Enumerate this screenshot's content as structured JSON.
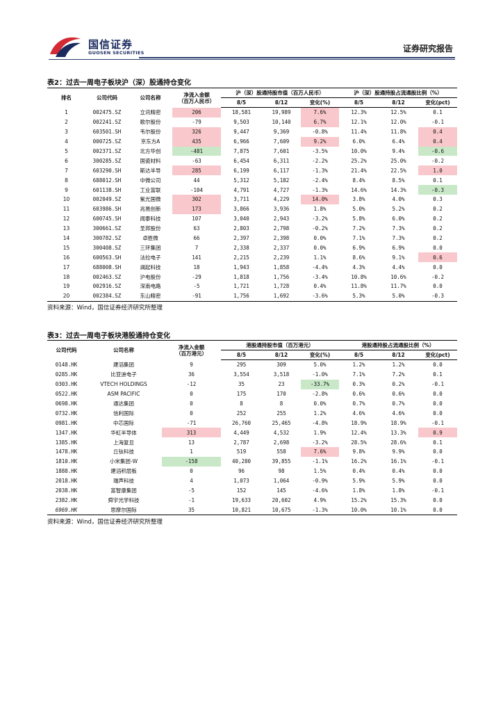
{
  "header": {
    "brand_cn": "国信证券",
    "brand_en": "GUOSEN SECURITIES",
    "report_type": "证券研究报告"
  },
  "colors": {
    "brand": "#1a2a5e",
    "logo_red": "#d42a35",
    "positive_highlight": "#f8c8cc",
    "negative_highlight": "#c8e8c8"
  },
  "table2": {
    "caption": "表2：过去一周电子板块沪（深）股通持仓变化",
    "headers": {
      "rank": "排名",
      "code": "公司代码",
      "name": "公司名称",
      "netflow_l1": "净流入金额",
      "netflow_l2": "（百万人民币）",
      "mv_group": "沪（深）股通持股市值（百万人民币）",
      "ratio_group": "沪（深）股通持股占流通股比例（%）",
      "d1": "8/5",
      "d2": "8/12",
      "chg": "变化(%)",
      "r1": "8/5",
      "r2": "8/12",
      "rchg": "变化(pct)"
    },
    "rows": [
      {
        "rank": "1",
        "code": "002475.SZ",
        "name": "立讯精密",
        "net": "206",
        "mv1": "18,581",
        "mv2": "19,989",
        "chg": "7.6%",
        "r1": "12.3%",
        "r2": "12.5%",
        "rchg": "0.1",
        "net_hl": "red",
        "chg_hl": "red",
        "rchg_hl": ""
      },
      {
        "rank": "2",
        "code": "002241.SZ",
        "name": "歌尔股份",
        "net": "-79",
        "mv1": "9,503",
        "mv2": "10,140",
        "chg": "6.7%",
        "r1": "12.1%",
        "r2": "12.0%",
        "rchg": "-0.1",
        "net_hl": "",
        "chg_hl": "red",
        "rchg_hl": ""
      },
      {
        "rank": "3",
        "code": "603501.SH",
        "name": "韦尔股份",
        "net": "326",
        "mv1": "9,447",
        "mv2": "9,369",
        "chg": "-0.8%",
        "r1": "11.4%",
        "r2": "11.8%",
        "rchg": "0.4",
        "net_hl": "red",
        "chg_hl": "",
        "rchg_hl": "red"
      },
      {
        "rank": "4",
        "code": "000725.SZ",
        "name": "京东方A",
        "net": "435",
        "mv1": "6,966",
        "mv2": "7,609",
        "chg": "9.2%",
        "r1": "6.0%",
        "r2": "6.4%",
        "rchg": "0.4",
        "net_hl": "red",
        "chg_hl": "red",
        "rchg_hl": "red"
      },
      {
        "rank": "5",
        "code": "002371.SZ",
        "name": "北方华创",
        "net": "-481",
        "mv1": "7,875",
        "mv2": "7,601",
        "chg": "-3.5%",
        "r1": "10.0%",
        "r2": "9.4%",
        "rchg": "-0.6",
        "net_hl": "green",
        "chg_hl": "",
        "rchg_hl": "green"
      },
      {
        "rank": "6",
        "code": "300285.SZ",
        "name": "国瓷材料",
        "net": "-63",
        "mv1": "6,454",
        "mv2": "6,311",
        "chg": "-2.2%",
        "r1": "25.2%",
        "r2": "25.0%",
        "rchg": "-0.2",
        "net_hl": "",
        "chg_hl": "",
        "rchg_hl": ""
      },
      {
        "rank": "7",
        "code": "603290.SH",
        "name": "斯达半导",
        "net": "285",
        "mv1": "6,199",
        "mv2": "6,117",
        "chg": "-1.3%",
        "r1": "21.4%",
        "r2": "22.5%",
        "rchg": "1.0",
        "net_hl": "red",
        "chg_hl": "",
        "rchg_hl": "red"
      },
      {
        "rank": "8",
        "code": "688012.SH",
        "name": "中微公司",
        "net": "44",
        "mv1": "5,312",
        "mv2": "5,182",
        "chg": "-2.4%",
        "r1": "8.4%",
        "r2": "8.5%",
        "rchg": "0.1",
        "net_hl": "",
        "chg_hl": "",
        "rchg_hl": ""
      },
      {
        "rank": "9",
        "code": "601138.SH",
        "name": "工业富联",
        "net": "-104",
        "mv1": "4,791",
        "mv2": "4,727",
        "chg": "-1.3%",
        "r1": "14.6%",
        "r2": "14.3%",
        "rchg": "-0.3",
        "net_hl": "",
        "chg_hl": "",
        "rchg_hl": "green"
      },
      {
        "rank": "10",
        "code": "002049.SZ",
        "name": "紫光国微",
        "net": "302",
        "mv1": "3,711",
        "mv2": "4,229",
        "chg": "14.0%",
        "r1": "3.8%",
        "r2": "4.0%",
        "rchg": "0.3",
        "net_hl": "red",
        "chg_hl": "red",
        "rchg_hl": ""
      },
      {
        "rank": "11",
        "code": "603986.SH",
        "name": "兆易创新",
        "net": "173",
        "mv1": "3,866",
        "mv2": "3,936",
        "chg": "1.8%",
        "r1": "5.0%",
        "r2": "5.2%",
        "rchg": "0.2",
        "net_hl": "red",
        "chg_hl": "",
        "rchg_hl": ""
      },
      {
        "rank": "12",
        "code": "600745.SH",
        "name": "闻泰科技",
        "net": "107",
        "mv1": "3,040",
        "mv2": "2,943",
        "chg": "-3.2%",
        "r1": "5.8%",
        "r2": "6.0%",
        "rchg": "0.2",
        "net_hl": "",
        "chg_hl": "",
        "rchg_hl": ""
      },
      {
        "rank": "13",
        "code": "300661.SZ",
        "name": "圣邦股份",
        "net": "63",
        "mv1": "2,803",
        "mv2": "2,798",
        "chg": "-0.2%",
        "r1": "7.2%",
        "r2": "7.3%",
        "rchg": "0.2",
        "net_hl": "",
        "chg_hl": "",
        "rchg_hl": ""
      },
      {
        "rank": "14",
        "code": "300782.SZ",
        "name": "卓胜微",
        "net": "66",
        "mv1": "2,397",
        "mv2": "2,398",
        "chg": "0.0%",
        "r1": "7.1%",
        "r2": "7.3%",
        "rchg": "0.2",
        "net_hl": "",
        "chg_hl": "",
        "rchg_hl": ""
      },
      {
        "rank": "15",
        "code": "300408.SZ",
        "name": "三环集团",
        "net": "7",
        "mv1": "2,338",
        "mv2": "2,337",
        "chg": "0.0%",
        "r1": "6.9%",
        "r2": "6.9%",
        "rchg": "0.0",
        "net_hl": "",
        "chg_hl": "",
        "rchg_hl": ""
      },
      {
        "rank": "16",
        "code": "600563.SH",
        "name": "法拉电子",
        "net": "141",
        "mv1": "2,215",
        "mv2": "2,239",
        "chg": "1.1%",
        "r1": "8.6%",
        "r2": "9.1%",
        "rchg": "0.6",
        "net_hl": "",
        "chg_hl": "",
        "rchg_hl": "red"
      },
      {
        "rank": "17",
        "code": "688008.SH",
        "name": "澜起科技",
        "net": "18",
        "mv1": "1,943",
        "mv2": "1,858",
        "chg": "-4.4%",
        "r1": "4.3%",
        "r2": "4.4%",
        "rchg": "0.0",
        "net_hl": "",
        "chg_hl": "",
        "rchg_hl": ""
      },
      {
        "rank": "18",
        "code": "002463.SZ",
        "name": "沪电股份",
        "net": "-29",
        "mv1": "1,818",
        "mv2": "1,756",
        "chg": "-3.4%",
        "r1": "10.8%",
        "r2": "10.6%",
        "rchg": "-0.2",
        "net_hl": "",
        "chg_hl": "",
        "rchg_hl": ""
      },
      {
        "rank": "19",
        "code": "002916.SZ",
        "name": "深南电路",
        "net": "-5",
        "mv1": "1,721",
        "mv2": "1,728",
        "chg": "0.4%",
        "r1": "11.8%",
        "r2": "11.7%",
        "rchg": "0.0",
        "net_hl": "",
        "chg_hl": "",
        "rchg_hl": ""
      },
      {
        "rank": "20",
        "code": "002384.SZ",
        "name": "东山精密",
        "net": "-91",
        "mv1": "1,756",
        "mv2": "1,692",
        "chg": "-3.6%",
        "r1": "5.3%",
        "r2": "5.0%",
        "rchg": "-0.3",
        "net_hl": "",
        "chg_hl": "",
        "rchg_hl": ""
      }
    ],
    "source": "资料来源：Wind，国信证券经济研究所整理"
  },
  "table3": {
    "caption": "表3：过去一周电子板块港股通持仓变化",
    "headers": {
      "code": "公司代码",
      "name": "公司名称",
      "netflow_l1": "净流入金额",
      "netflow_l2": "（百万港元）",
      "mv_group": "港股通持股市值（百万港元）",
      "ratio_group": "港股通持股占流通股比例（%）",
      "d1": "8/5",
      "d2": "8/12",
      "chg": "变化(%)",
      "r1": "8/5",
      "r2": "8/12",
      "rchg": "变化(pct)"
    },
    "rows": [
      {
        "code": "0148.HK",
        "name": "建滔集团",
        "net": "9",
        "mv1": "295",
        "mv2": "309",
        "chg": "5.0%",
        "r1": "1.2%",
        "r2": "1.2%",
        "rchg": "0.0",
        "net_hl": "",
        "chg_hl": "",
        "rchg_hl": "",
        "code_it": false
      },
      {
        "code": "0285.HK",
        "name": "比亚迪电子",
        "net": "36",
        "mv1": "3,554",
        "mv2": "3,518",
        "chg": "-1.0%",
        "r1": "7.1%",
        "r2": "7.2%",
        "rchg": "0.1",
        "net_hl": "",
        "chg_hl": "",
        "rchg_hl": "",
        "code_it": false
      },
      {
        "code": "0303.HK",
        "name": "VTECH HOLDINGS",
        "net": "-12",
        "mv1": "35",
        "mv2": "23",
        "chg": "-33.7%",
        "r1": "0.3%",
        "r2": "0.2%",
        "rchg": "-0.1",
        "net_hl": "",
        "chg_hl": "green",
        "rchg_hl": "",
        "code_it": false
      },
      {
        "code": "0522.HK",
        "name": "ASM PACIFIC",
        "net": "0",
        "mv1": "175",
        "mv2": "170",
        "chg": "-2.8%",
        "r1": "0.6%",
        "r2": "0.6%",
        "rchg": "0.0",
        "net_hl": "",
        "chg_hl": "",
        "rchg_hl": "",
        "code_it": false
      },
      {
        "code": "0698.HK",
        "name": "通达集团",
        "net": "0",
        "mv1": "8",
        "mv2": "8",
        "chg": "0.0%",
        "r1": "0.7%",
        "r2": "0.7%",
        "rchg": "0.0",
        "net_hl": "",
        "chg_hl": "",
        "rchg_hl": "",
        "code_it": false
      },
      {
        "code": "0732.HK",
        "name": "信利国际",
        "net": "0",
        "mv1": "252",
        "mv2": "255",
        "chg": "1.2%",
        "r1": "4.6%",
        "r2": "4.6%",
        "rchg": "0.0",
        "net_hl": "",
        "chg_hl": "",
        "rchg_hl": "",
        "code_it": false
      },
      {
        "code": "0981.HK",
        "name": "中芯国际",
        "net": "-71",
        "mv1": "26,760",
        "mv2": "25,465",
        "chg": "-4.8%",
        "r1": "18.9%",
        "r2": "18.9%",
        "rchg": "-0.1",
        "net_hl": "",
        "chg_hl": "",
        "rchg_hl": "",
        "code_it": false
      },
      {
        "code": "1347.HK",
        "name": "华虹半导体",
        "net": "313",
        "mv1": "4,449",
        "mv2": "4,532",
        "chg": "1.9%",
        "r1": "12.4%",
        "r2": "13.3%",
        "rchg": "0.9",
        "net_hl": "red",
        "chg_hl": "",
        "rchg_hl": "red",
        "code_it": false
      },
      {
        "code": "1385.HK",
        "name": "上海复旦",
        "net": "13",
        "mv1": "2,787",
        "mv2": "2,698",
        "chg": "-3.2%",
        "r1": "28.5%",
        "r2": "28.6%",
        "rchg": "0.1",
        "net_hl": "",
        "chg_hl": "",
        "rchg_hl": "",
        "code_it": false
      },
      {
        "code": "1478.HK",
        "name": "丘钛科技",
        "net": "1",
        "mv1": "519",
        "mv2": "558",
        "chg": "7.6%",
        "r1": "9.8%",
        "r2": "9.9%",
        "rchg": "0.0",
        "net_hl": "",
        "chg_hl": "red",
        "rchg_hl": "",
        "code_it": false
      },
      {
        "code": "1810.HK",
        "name": "小米集团-W",
        "net": "-158",
        "mv1": "40,280",
        "mv2": "39,855",
        "chg": "-1.1%",
        "r1": "16.2%",
        "r2": "16.1%",
        "rchg": "-0.1",
        "net_hl": "green",
        "chg_hl": "",
        "rchg_hl": "",
        "code_it": false
      },
      {
        "code": "1888.HK",
        "name": "建滔积层板",
        "net": "0",
        "mv1": "96",
        "mv2": "98",
        "chg": "1.5%",
        "r1": "0.4%",
        "r2": "0.4%",
        "rchg": "0.0",
        "net_hl": "",
        "chg_hl": "",
        "rchg_hl": "",
        "code_it": false
      },
      {
        "code": "2018.HK",
        "name": "瑞声科技",
        "net": "4",
        "mv1": "1,073",
        "mv2": "1,064",
        "chg": "-0.9%",
        "r1": "5.9%",
        "r2": "5.9%",
        "rchg": "0.0",
        "net_hl": "",
        "chg_hl": "",
        "rchg_hl": "",
        "code_it": false
      },
      {
        "code": "2038.HK",
        "name": "富智康集团",
        "net": "-5",
        "mv1": "152",
        "mv2": "145",
        "chg": "-4.6%",
        "r1": "1.8%",
        "r2": "1.8%",
        "rchg": "-0.1",
        "net_hl": "",
        "chg_hl": "",
        "rchg_hl": "",
        "code_it": false
      },
      {
        "code": "2382.HK",
        "name": "舜宇光学科技",
        "net": "-1",
        "mv1": "19,633",
        "mv2": "20,602",
        "chg": "4.9%",
        "r1": "15.2%",
        "r2": "15.3%",
        "rchg": "0.0",
        "net_hl": "",
        "chg_hl": "",
        "rchg_hl": "",
        "code_it": false
      },
      {
        "code": "6969.HK",
        "name": "思摩尔国际",
        "net": "35",
        "mv1": "10,821",
        "mv2": "10,675",
        "chg": "-1.3%",
        "r1": "10.0%",
        "r2": "10.1%",
        "rchg": "0.0",
        "net_hl": "",
        "chg_hl": "",
        "rchg_hl": "",
        "code_it": true
      }
    ],
    "source": "资料来源：Wind，国信证券经济研究所整理"
  }
}
